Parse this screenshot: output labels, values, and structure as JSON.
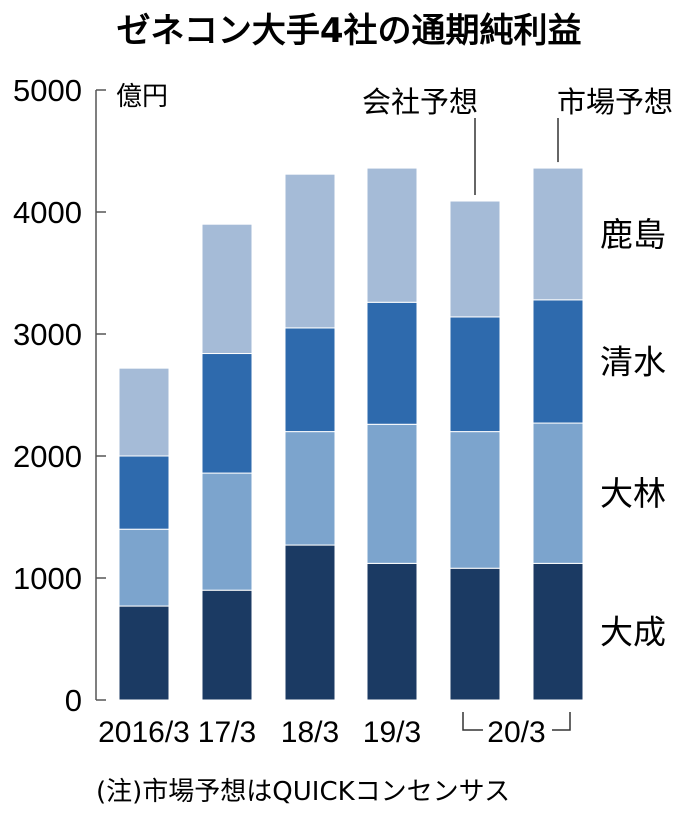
{
  "chart_data": {
    "type": "bar",
    "stacked": true,
    "title": "ゼネコン大手4社の通期純利益",
    "unit": "億円",
    "ylim": [
      0,
      5000
    ],
    "yticks": [
      "0",
      "1000",
      "2000",
      "3000",
      "4000",
      "5000"
    ],
    "ytick_values": [
      0,
      1000,
      2000,
      3000,
      4000,
      5000
    ],
    "categories": [
      "2016/3",
      "17/3",
      "18/3",
      "19/3",
      "20/3",
      "20/3"
    ],
    "x_tick_labels": [
      "2016/3",
      "17/3",
      "18/3",
      "19/3",
      "20/3"
    ],
    "series": [
      {
        "name": "大成",
        "color": "#1b3a63",
        "values": [
          770,
          900,
          1270,
          1120,
          1080,
          1120
        ]
      },
      {
        "name": "大林",
        "color": "#7ca4cd",
        "values": [
          630,
          960,
          930,
          1140,
          1120,
          1150
        ]
      },
      {
        "name": "清水",
        "color": "#2e6aad",
        "values": [
          600,
          980,
          850,
          1000,
          940,
          1010
        ]
      },
      {
        "name": "鹿島",
        "color": "#a5bbd7",
        "values": [
          720,
          1060,
          1260,
          1100,
          950,
          1080
        ]
      }
    ],
    "annotations": [
      "会社予想",
      "市場予想"
    ],
    "note": "(注)市場予想はQUICKコンセンサス",
    "grid": false,
    "legend_position": "right (inline labels)"
  }
}
